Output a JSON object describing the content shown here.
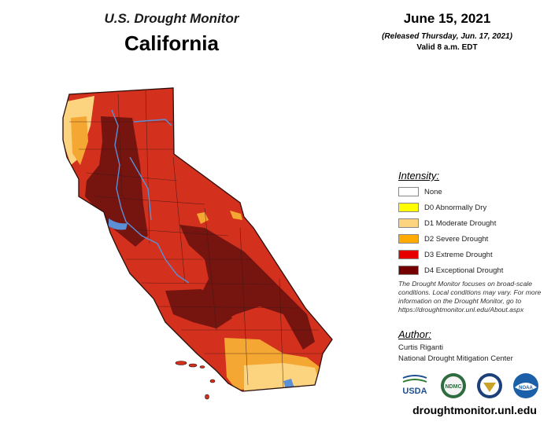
{
  "header": {
    "monitor_title": "U.S. Drought Monitor",
    "state": "California",
    "date": "June 15, 2021",
    "released": "(Released Thursday, Jun. 17, 2021)",
    "valid": "Valid 8 a.m. EDT"
  },
  "legend": {
    "heading": "Intensity:",
    "items": [
      {
        "label": "None",
        "color": "#ffffff"
      },
      {
        "label": "D0 Abnormally Dry",
        "color": "#ffff00"
      },
      {
        "label": "D1 Moderate Drought",
        "color": "#fcd37f"
      },
      {
        "label": "D2 Severe Drought",
        "color": "#ffaa00"
      },
      {
        "label": "D3 Extreme Drought",
        "color": "#e60000"
      },
      {
        "label": "D4 Exceptional Drought",
        "color": "#730000"
      }
    ]
  },
  "note": "The Drought Monitor focuses on broad-scale conditions. Local conditions may vary. For more information on the Drought Monitor, go to https://droughtmonitor.unl.edu/About.aspx",
  "author": {
    "heading": "Author:",
    "name": "Curtis Riganti",
    "organization": "National Drought Mitigation Center"
  },
  "logos": [
    {
      "name": "usda-logo",
      "text": "USDA"
    },
    {
      "name": "ndmc-logo",
      "text": "NDMC"
    },
    {
      "name": "doc-seal-logo"
    },
    {
      "name": "noaa-logo",
      "text": "NOAA"
    }
  ],
  "map_colors": {
    "d1": "#fcd37f",
    "d2": "#f5a733",
    "d3": "#d4301e",
    "d4": "#761410",
    "water": "#5b8fd6",
    "border": "#3a1a14"
  },
  "footer_url": "droughtmonitor.unl.edu"
}
